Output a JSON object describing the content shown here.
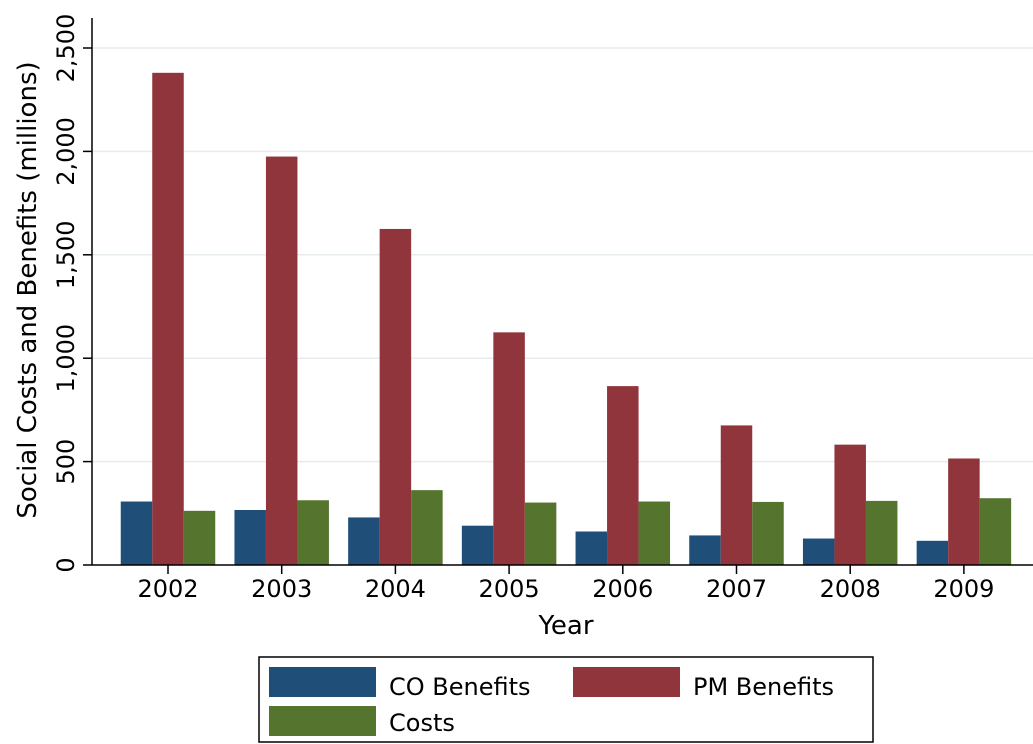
{
  "chart_data": {
    "type": "bar",
    "xlabel": "Year",
    "ylabel": "Social Costs and Benefits (millions)",
    "categories": [
      "2002",
      "2003",
      "2004",
      "2005",
      "2006",
      "2007",
      "2008",
      "2009"
    ],
    "series": [
      {
        "name": "CO Benefits",
        "color": "#1f4e79",
        "values": [
          307,
          266,
          230,
          190,
          162,
          143,
          128,
          117
        ]
      },
      {
        "name": "PM Benefits",
        "color": "#90353b",
        "values": [
          2380,
          1975,
          1625,
          1125,
          865,
          675,
          582,
          515
        ]
      },
      {
        "name": "Costs",
        "color": "#55752f",
        "values": [
          262,
          313,
          362,
          302,
          307,
          305,
          310,
          323
        ]
      }
    ],
    "ylim": [
      0,
      2500
    ],
    "yticks": [
      0,
      500,
      1000,
      1500,
      2000,
      2500
    ],
    "ytick_labels": [
      "0",
      "500",
      "1,000",
      "1,500",
      "2,000",
      "2,500"
    ],
    "grid": true,
    "legend_position": "bottom"
  }
}
